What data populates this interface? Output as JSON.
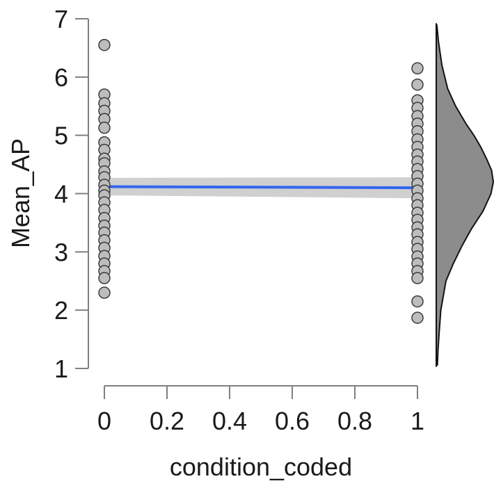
{
  "chart_data": {
    "type": "scatter",
    "title": "",
    "xlabel": "condition_coded",
    "ylabel": "Mean_AP",
    "xlim": [
      0,
      1
    ],
    "ylim": [
      1,
      7
    ],
    "x_ticks": [
      0,
      0.2,
      0.4,
      0.6,
      0.8,
      1
    ],
    "x_tick_labels": [
      "0",
      "0.2",
      "0.4",
      "0.6",
      "0.8",
      "1"
    ],
    "y_ticks": [
      1,
      2,
      3,
      4,
      5,
      6,
      7
    ],
    "y_tick_labels": [
      "1",
      "2",
      "3",
      "4",
      "5",
      "6",
      "7"
    ],
    "grid": false,
    "legend": "none",
    "points": [
      {
        "x": 0,
        "y": 6.55
      },
      {
        "x": 0,
        "y": 5.7
      },
      {
        "x": 0,
        "y": 5.55
      },
      {
        "x": 0,
        "y": 5.42
      },
      {
        "x": 0,
        "y": 5.28
      },
      {
        "x": 0,
        "y": 5.13
      },
      {
        "x": 0,
        "y": 4.88
      },
      {
        "x": 0,
        "y": 4.75
      },
      {
        "x": 0,
        "y": 4.6
      },
      {
        "x": 0,
        "y": 4.52
      },
      {
        "x": 0,
        "y": 4.38
      },
      {
        "x": 0,
        "y": 4.28
      },
      {
        "x": 0,
        "y": 4.15
      },
      {
        "x": 0,
        "y": 4.05
      },
      {
        "x": 0,
        "y": 3.97
      },
      {
        "x": 0,
        "y": 3.85
      },
      {
        "x": 0,
        "y": 3.72
      },
      {
        "x": 0,
        "y": 3.58
      },
      {
        "x": 0,
        "y": 3.45
      },
      {
        "x": 0,
        "y": 3.33
      },
      {
        "x": 0,
        "y": 3.2
      },
      {
        "x": 0,
        "y": 3.07
      },
      {
        "x": 0,
        "y": 2.93
      },
      {
        "x": 0,
        "y": 2.8
      },
      {
        "x": 0,
        "y": 2.67
      },
      {
        "x": 0,
        "y": 2.55
      },
      {
        "x": 0,
        "y": 2.3
      },
      {
        "x": 1,
        "y": 6.15
      },
      {
        "x": 1,
        "y": 5.87
      },
      {
        "x": 1,
        "y": 5.6
      },
      {
        "x": 1,
        "y": 5.47
      },
      {
        "x": 1,
        "y": 5.33
      },
      {
        "x": 1,
        "y": 5.2
      },
      {
        "x": 1,
        "y": 5.07
      },
      {
        "x": 1,
        "y": 4.93
      },
      {
        "x": 1,
        "y": 4.8
      },
      {
        "x": 1,
        "y": 4.67
      },
      {
        "x": 1,
        "y": 4.55
      },
      {
        "x": 1,
        "y": 4.42
      },
      {
        "x": 1,
        "y": 4.3
      },
      {
        "x": 1,
        "y": 4.17
      },
      {
        "x": 1,
        "y": 4.05
      },
      {
        "x": 1,
        "y": 3.92
      },
      {
        "x": 1,
        "y": 3.8
      },
      {
        "x": 1,
        "y": 3.67
      },
      {
        "x": 1,
        "y": 3.55
      },
      {
        "x": 1,
        "y": 3.42
      },
      {
        "x": 1,
        "y": 3.3
      },
      {
        "x": 1,
        "y": 3.17
      },
      {
        "x": 1,
        "y": 3.05
      },
      {
        "x": 1,
        "y": 2.92
      },
      {
        "x": 1,
        "y": 2.8
      },
      {
        "x": 1,
        "y": 2.67
      },
      {
        "x": 1,
        "y": 2.55
      },
      {
        "x": 1,
        "y": 2.15
      },
      {
        "x": 1,
        "y": 1.87
      }
    ],
    "regression_line": {
      "x": [
        0,
        1
      ],
      "y": [
        4.12,
        4.1
      ],
      "ci_lower": [
        3.97,
        3.92
      ],
      "ci_upper": [
        4.27,
        4.28
      ],
      "color": "#3366ee"
    },
    "density_curve": {
      "y": [
        1.05,
        1.3,
        1.6,
        2.0,
        2.5,
        2.8,
        3.1,
        3.4,
        3.7,
        4.0,
        4.2,
        4.4,
        4.6,
        4.8,
        5.0,
        5.2,
        5.5,
        5.8,
        6.2,
        6.6,
        6.9
      ],
      "density": [
        0.02,
        0.03,
        0.05,
        0.08,
        0.17,
        0.3,
        0.45,
        0.62,
        0.82,
        0.96,
        1.0,
        0.97,
        0.88,
        0.78,
        0.66,
        0.52,
        0.34,
        0.2,
        0.1,
        0.04,
        0.01
      ],
      "fill_color": "#8c8c8c"
    },
    "colors": {
      "point_fill": "#bdbdbd",
      "point_stroke": "#3a3a3a",
      "ci_band": "#c8c8c8",
      "axis": "#7f7f7f"
    }
  }
}
